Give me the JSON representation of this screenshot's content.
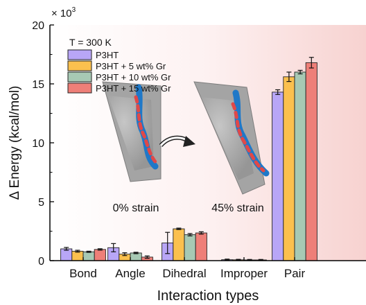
{
  "chart_data": {
    "type": "bar",
    "categories": [
      "Bond",
      "Angle",
      "Dihedral",
      "Improper",
      "Pair"
    ],
    "series": [
      {
        "name": "P3HT",
        "values": [
          1.0,
          1.1,
          1.5,
          0.08,
          14.3
        ],
        "errors": [
          0.12,
          0.35,
          0.9,
          0.05,
          0.2
        ]
      },
      {
        "name": "P3HT + 5 wt% Gr",
        "values": [
          0.8,
          0.55,
          2.7,
          0.07,
          15.6
        ],
        "errors": [
          0.08,
          0.12,
          0.06,
          0.04,
          0.4
        ]
      },
      {
        "name": "P3HT + 10 wt% Gr",
        "values": [
          0.75,
          0.65,
          2.2,
          0.06,
          16.0
        ],
        "errors": [
          0.05,
          0.06,
          0.1,
          0.04,
          0.15
        ]
      },
      {
        "name": "P3HT + 15 wt% Gr",
        "values": [
          0.95,
          0.3,
          2.35,
          0.06,
          16.8
        ],
        "errors": [
          0.06,
          0.1,
          0.1,
          0.04,
          0.45
        ]
      }
    ],
    "ylim": [
      0,
      20
    ],
    "yticks": [
      0,
      5,
      10,
      15,
      20
    ],
    "ylabel": "Δ Energy (kcal/mol)",
    "y_multiplier": "× 10",
    "y_multiplier_exp": "3",
    "xlabel": "Interaction types",
    "legend_title": "T = 300 K",
    "legend_placement": "top-left",
    "annotations": [
      "0% strain",
      "45% strain"
    ],
    "colors": [
      "#b8a6f6",
      "#fbc04e",
      "#a7c9b4",
      "#ee7f78"
    ]
  }
}
